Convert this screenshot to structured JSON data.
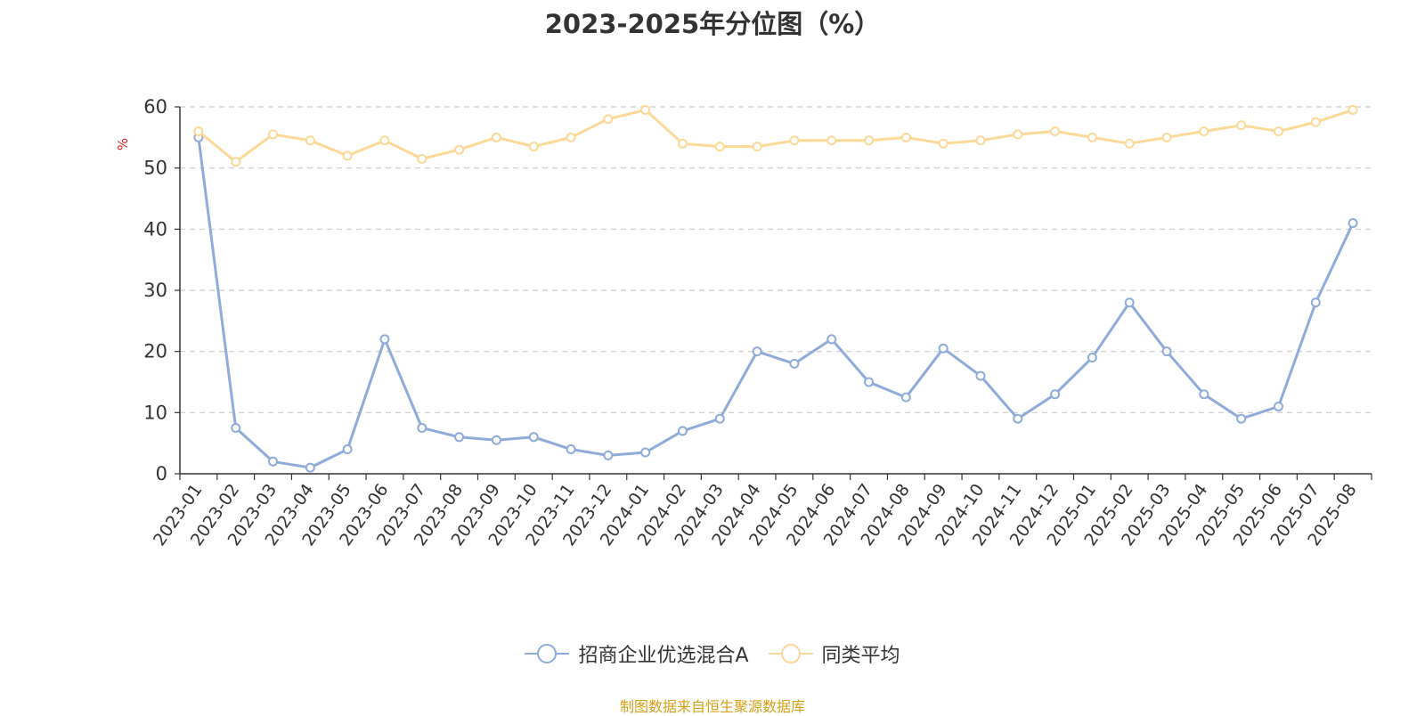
{
  "chart_data": {
    "type": "line",
    "title": "2023-2025年分位图（%）",
    "ylabel": "%",
    "ylim": [
      0,
      60
    ],
    "yticks": [
      0,
      10,
      20,
      30,
      40,
      50,
      60
    ],
    "grid": true,
    "legend_position": "bottom",
    "categories": [
      "2023-01",
      "2023-02",
      "2023-03",
      "2023-04",
      "2023-05",
      "2023-06",
      "2023-07",
      "2023-08",
      "2023-09",
      "2023-10",
      "2023-11",
      "2023-12",
      "2024-01",
      "2024-02",
      "2024-03",
      "2024-04",
      "2024-05",
      "2024-06",
      "2024-07",
      "2024-08",
      "2024-09",
      "2024-10",
      "2024-11",
      "2024-12",
      "2025-01",
      "2025-02",
      "2025-03",
      "2025-04",
      "2025-05",
      "2025-06",
      "2025-07",
      "2025-08"
    ],
    "series": [
      {
        "name": "招商企业优选混合A",
        "color": "#8eabd9",
        "values": [
          55,
          7.5,
          2,
          1,
          4,
          22,
          7.5,
          6,
          5.5,
          6,
          4,
          3,
          3.5,
          7,
          9,
          20,
          18,
          22,
          15,
          12.5,
          20.5,
          16,
          9,
          13,
          19,
          28,
          20,
          13,
          9,
          11,
          28,
          41
        ]
      },
      {
        "name": "同类平均",
        "color": "#fcd997",
        "values": [
          56,
          51,
          55.5,
          54.5,
          52,
          54.5,
          51.5,
          53,
          55,
          53.5,
          55,
          58,
          59.5,
          54,
          53.5,
          53.5,
          54.5,
          54.5,
          54.5,
          55,
          54,
          54.5,
          55.5,
          56,
          55,
          54,
          55,
          56,
          57,
          56,
          57.5,
          59.5
        ]
      }
    ],
    "source": "制图数据来自恒生聚源数据库",
    "source_color": "#d4a017",
    "ylabel_color": "#e02020"
  }
}
